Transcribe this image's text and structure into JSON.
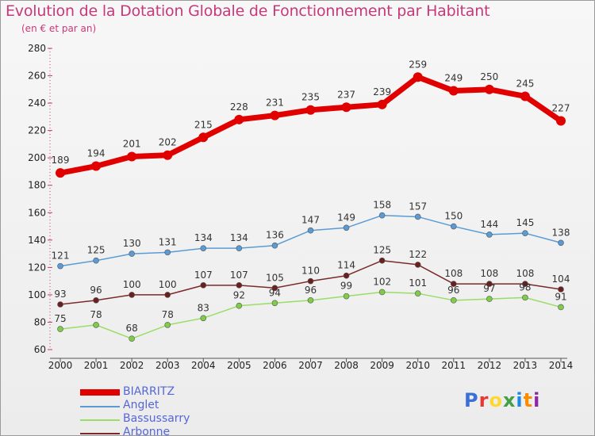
{
  "header": {
    "title": "Evolution de la Dotation Globale de Fonctionnement par Habitant",
    "subtitle": "(en € et par an)"
  },
  "logo": {
    "text": "Proxiti",
    "colors": [
      "#3a6fd8",
      "#e53935",
      "#fdd835",
      "#43a047",
      "#1e88e5",
      "#fb8c00",
      "#8e24aa"
    ]
  },
  "chart_data": {
    "type": "line",
    "title": "Evolution de la Dotation Globale de Fonctionnement par Habitant",
    "subtitle": "(en € et par an)",
    "xlabel": "",
    "ylabel": "",
    "ylim": [
      60,
      280
    ],
    "yticks": [
      60,
      80,
      100,
      120,
      140,
      160,
      180,
      200,
      220,
      240,
      260,
      280
    ],
    "grid": false,
    "legend_position": "bottom-left",
    "x": [
      "2000",
      "2001",
      "2002",
      "2003",
      "2004",
      "2005",
      "2006",
      "2007",
      "2008",
      "2009",
      "2010",
      "2011",
      "2012",
      "2013",
      "2014"
    ],
    "series": [
      {
        "name": "BIARRITZ",
        "color": "#e00000",
        "marker": "#e00000",
        "width": 7,
        "radius": 6,
        "values": [
          189,
          194,
          201,
          202,
          215,
          228,
          231,
          235,
          237,
          239,
          259,
          249,
          250,
          245,
          227
        ]
      },
      {
        "name": "Anglet",
        "color": "#5b9bd5",
        "marker": "#5b9bd5",
        "width": 1.5,
        "radius": 3.5,
        "values": [
          121,
          125,
          130,
          131,
          134,
          134,
          136,
          147,
          149,
          158,
          157,
          150,
          144,
          145,
          138
        ]
      },
      {
        "name": "Bassussarry",
        "color": "#99dd66",
        "marker": "#7fcc4a",
        "width": 1.5,
        "radius": 3.5,
        "values": [
          75,
          78,
          68,
          78,
          83,
          92,
          94,
          96,
          99,
          102,
          101,
          96,
          97,
          98,
          91
        ]
      },
      {
        "name": "Arbonne",
        "color": "#7a2a2a",
        "marker": "#6b1f1f",
        "width": 1.5,
        "radius": 3.5,
        "values": [
          93,
          96,
          100,
          100,
          107,
          107,
          105,
          110,
          114,
          125,
          122,
          108,
          108,
          108,
          104
        ]
      }
    ]
  }
}
